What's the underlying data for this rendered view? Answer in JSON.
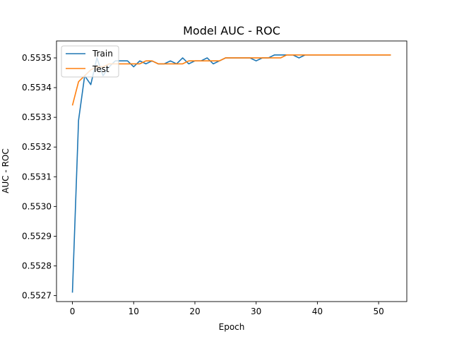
{
  "chart_data": {
    "type": "line",
    "title": "Model AUC - ROC",
    "xlabel": "Epoch",
    "ylabel": "AUC - ROC",
    "xlim": [
      -2.6,
      54.6
    ],
    "ylim": [
      0.55268,
      0.553557
    ],
    "x_ticks": [
      0,
      10,
      20,
      30,
      40,
      50
    ],
    "y_ticks": [
      0.5527,
      0.5528,
      0.5529,
      0.553,
      0.5531,
      0.5532,
      0.5533,
      0.5534,
      0.5535
    ],
    "y_tick_labels": [
      "0.5527",
      "0.5528",
      "0.5529",
      "0.5530",
      "0.5531",
      "0.5532",
      "0.5533",
      "0.5534",
      "0.5535"
    ],
    "grid": false,
    "legend_position": "top-left",
    "x": [
      0,
      1,
      2,
      3,
      4,
      5,
      6,
      7,
      8,
      9,
      10,
      11,
      12,
      13,
      14,
      15,
      16,
      17,
      18,
      19,
      20,
      21,
      22,
      23,
      24,
      25,
      26,
      27,
      28,
      29,
      30,
      31,
      32,
      33,
      34,
      35,
      36,
      37,
      38,
      39,
      40,
      41,
      42,
      43,
      44,
      45,
      46,
      47,
      48,
      49,
      50,
      51,
      52
    ],
    "series": [
      {
        "name": "Train",
        "color": "#1f77b4",
        "values": [
          0.55271,
          0.55329,
          0.55344,
          0.55341,
          0.5535,
          0.55344,
          0.55347,
          0.55349,
          0.55349,
          0.55349,
          0.55347,
          0.55349,
          0.55348,
          0.55349,
          0.55348,
          0.55348,
          0.55349,
          0.55348,
          0.5535,
          0.55348,
          0.55349,
          0.55349,
          0.5535,
          0.55348,
          0.55349,
          0.5535,
          0.5535,
          0.5535,
          0.5535,
          0.5535,
          0.55349,
          0.5535,
          0.5535,
          0.55351,
          0.55351,
          0.55351,
          0.55351,
          0.5535,
          0.55351,
          0.55351,
          0.55351,
          0.55351,
          0.55351,
          0.55351,
          0.55351,
          0.55351,
          0.55351,
          0.55351,
          0.55351,
          0.55351,
          0.55351,
          0.55351,
          0.55351
        ]
      },
      {
        "name": "Test",
        "color": "#ff7f0e",
        "values": [
          0.55334,
          0.55342,
          0.55344,
          0.55346,
          0.55347,
          0.55347,
          0.55348,
          0.55348,
          0.55348,
          0.55348,
          0.55348,
          0.55348,
          0.55349,
          0.55349,
          0.55348,
          0.55348,
          0.55348,
          0.55348,
          0.55348,
          0.55349,
          0.55349,
          0.55349,
          0.55349,
          0.55349,
          0.55349,
          0.5535,
          0.5535,
          0.5535,
          0.5535,
          0.5535,
          0.5535,
          0.5535,
          0.5535,
          0.5535,
          0.5535,
          0.55351,
          0.55351,
          0.55351,
          0.55351,
          0.55351,
          0.55351,
          0.55351,
          0.55351,
          0.55351,
          0.55351,
          0.55351,
          0.55351,
          0.55351,
          0.55351,
          0.55351,
          0.55351,
          0.55351,
          0.55351
        ]
      }
    ]
  }
}
